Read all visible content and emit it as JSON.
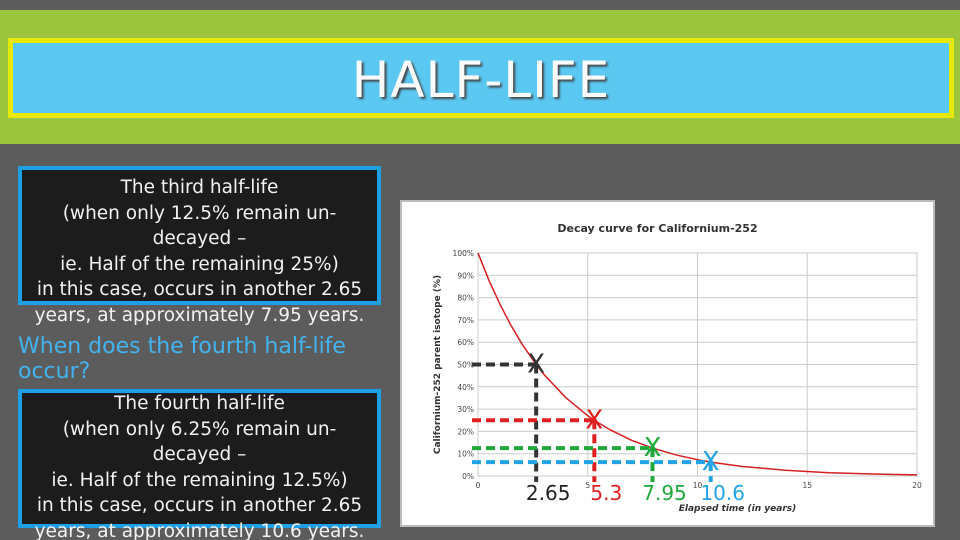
{
  "slide": {
    "title": "HALF-LIFE",
    "callout_1": {
      "lines": [
        "The third half-life",
        "(when only 12.5% remain un-",
        "decayed –",
        "ie. Half of the remaining 25%)",
        "in this case, occurs in another 2.65",
        "years, at approximately 7.95 years."
      ]
    },
    "question": "When does the fourth half-life occur?",
    "callout_2": {
      "lines": [
        "The fourth half-life",
        "(when only 6.25% remain un-",
        "decayed –",
        "ie. Half of the remaining 12.5%)",
        "in this case, occurs in another 2.65",
        "years, at approximately 10.6 years."
      ]
    },
    "colors": {
      "top_band": "#9bc53d",
      "title_border": "#e8e800",
      "title_fill": "#5bc8f2",
      "callout_border": "#1ea0e6",
      "question_text": "#42b3ef"
    }
  },
  "chart_data": {
    "type": "line",
    "title": "Decay curve for Californium-252",
    "xlabel": "Elapsed time (in years)",
    "ylabel": "Californium-252 parent isotope (%)",
    "xlim": [
      0,
      20
    ],
    "ylim": [
      0,
      100
    ],
    "x_ticks": [
      "0",
      "5",
      "10",
      "15",
      "20"
    ],
    "y_ticks": [
      "0%",
      "10%",
      "20%",
      "30%",
      "40%",
      "50%",
      "60%",
      "70%",
      "80%",
      "90%",
      "100%"
    ],
    "grid": true,
    "line_color": "#d42020",
    "series": [
      {
        "x": [
          0,
          0.5,
          1,
          1.5,
          2,
          2.65,
          3,
          4,
          5,
          5.3,
          6,
          7,
          7.95,
          9,
          10,
          10.6,
          12,
          14,
          16,
          18,
          20
        ],
        "y": [
          100,
          87.7,
          77.0,
          67.6,
          59.3,
          50,
          45.6,
          35.1,
          27.0,
          25,
          20.8,
          16.0,
          12.5,
          9.5,
          7.3,
          6.25,
          4.3,
          2.6,
          1.5,
          0.9,
          0.5
        ]
      }
    ],
    "annotations": [
      {
        "label": "2.65",
        "marker": "X",
        "x": 2.65,
        "y": 50,
        "color": "#333333"
      },
      {
        "label": "5.3",
        "marker": "X",
        "x": 5.3,
        "y": 25,
        "color": "#e02020"
      },
      {
        "label": "7.95",
        "marker": "X",
        "x": 7.95,
        "y": 12.5,
        "color": "#1fa83c"
      },
      {
        "label": "10.6",
        "marker": "X",
        "x": 10.6,
        "y": 6.25,
        "color": "#22a3e6"
      }
    ]
  }
}
